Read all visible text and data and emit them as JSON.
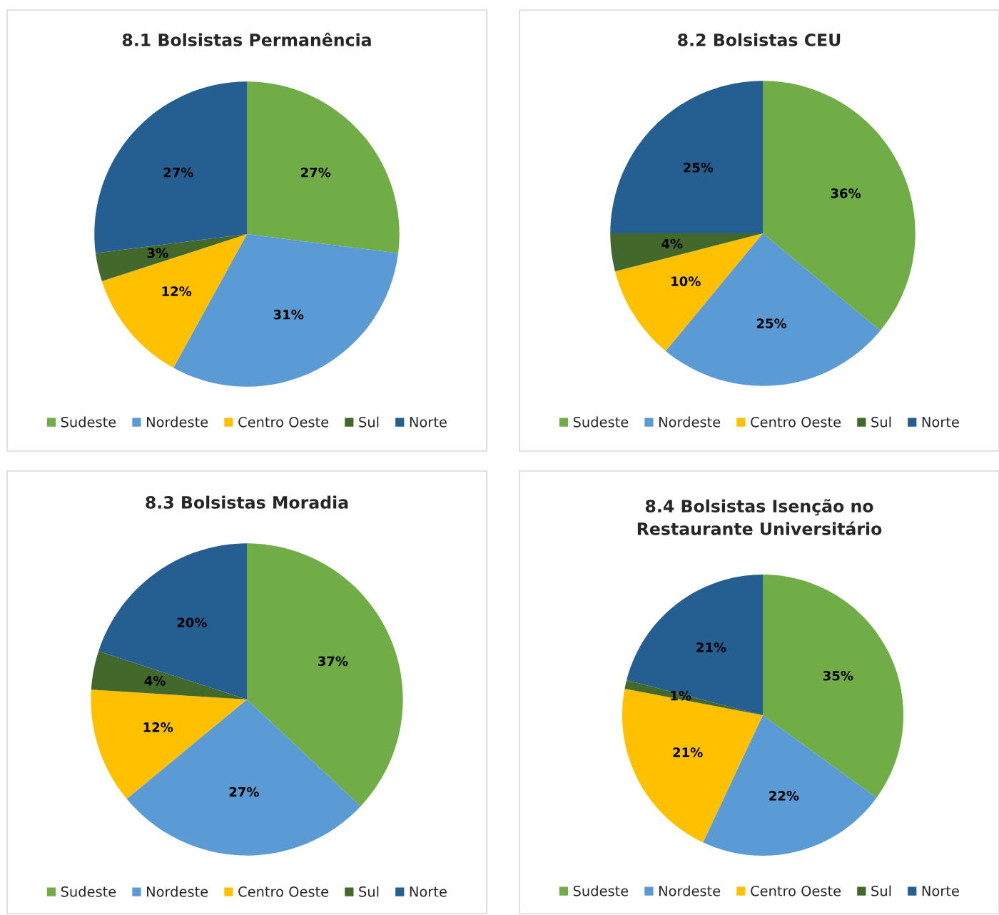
{
  "chart_data": [
    {
      "type": "pie",
      "title": "8.1 Bolsistas Permanência",
      "categories": [
        "Sudeste",
        "Nordeste",
        "Centro Oeste",
        "Sul",
        "Norte"
      ],
      "values": [
        27,
        31,
        12,
        3,
        27
      ],
      "value_labels": [
        "27%",
        "31%",
        "12%",
        "3%",
        "27%"
      ],
      "colors": [
        "#70ad47",
        "#5b9bd5",
        "#ffc000",
        "#43682b",
        "#255e91"
      ],
      "legend": "bottom"
    },
    {
      "type": "pie",
      "title": "8.2 Bolsistas CEU",
      "categories": [
        "Sudeste",
        "Nordeste",
        "Centro Oeste",
        "Sul",
        "Norte"
      ],
      "values": [
        36,
        25,
        10,
        4,
        25
      ],
      "value_labels": [
        "36%",
        "25%",
        "10%",
        "4%",
        "25%"
      ],
      "colors": [
        "#70ad47",
        "#5b9bd5",
        "#ffc000",
        "#43682b",
        "#255e91"
      ],
      "legend": "bottom"
    },
    {
      "type": "pie",
      "title": "8.3 Bolsistas Moradia",
      "categories": [
        "Sudeste",
        "Nordeste",
        "Centro Oeste",
        "Sul",
        "Norte"
      ],
      "values": [
        37,
        27,
        12,
        4,
        20
      ],
      "value_labels": [
        "37%",
        "27%",
        "12%",
        "4%",
        "20%"
      ],
      "colors": [
        "#70ad47",
        "#5b9bd5",
        "#ffc000",
        "#43682b",
        "#255e91"
      ],
      "legend": "bottom"
    },
    {
      "type": "pie",
      "title": "8.4 Bolsistas Isenção no\nRestaurante Universitário",
      "categories": [
        "Sudeste",
        "Nordeste",
        "Centro Oeste",
        "Sul",
        "Norte"
      ],
      "values": [
        35,
        22,
        21,
        1,
        21
      ],
      "value_labels": [
        "35%",
        "22%",
        "21%",
        "1%",
        "21%"
      ],
      "colors": [
        "#70ad47",
        "#5b9bd5",
        "#ffc000",
        "#43682b",
        "#255e91"
      ],
      "legend": "bottom"
    }
  ]
}
